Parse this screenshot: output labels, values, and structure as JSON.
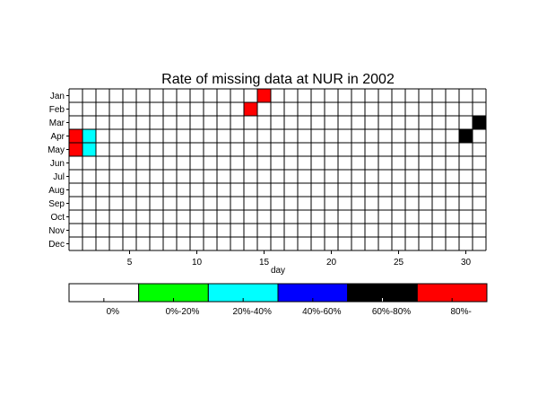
{
  "chart_data": {
    "type": "heatmap",
    "title": "Rate of missing data at NUR in 2002",
    "xlabel": "day",
    "ylabel": "",
    "x_range": [
      1,
      31
    ],
    "x_ticks": [
      5,
      10,
      15,
      20,
      25,
      30
    ],
    "rows": [
      "Jan",
      "Feb",
      "Mar",
      "Apr",
      "May",
      "Jun",
      "Jul",
      "Aug",
      "Sep",
      "Oct",
      "Nov",
      "Dec"
    ],
    "grid": true,
    "colorbar": {
      "placement": "bottom",
      "bins": [
        {
          "label": "0%",
          "color": "#ffffff"
        },
        {
          "label": "0%-20%",
          "color": "#00ff00"
        },
        {
          "label": "20%-40%",
          "color": "#00ffff"
        },
        {
          "label": "40%-60%",
          "color": "#0000ff"
        },
        {
          "label": "60%-80%",
          "color": "#000000"
        },
        {
          "label": "80%-",
          "color": "#ff0000"
        }
      ]
    },
    "cells": [
      {
        "month": "Jan",
        "day": 15,
        "bin": "80%-"
      },
      {
        "month": "Feb",
        "day": 14,
        "bin": "80%-"
      },
      {
        "month": "Mar",
        "day": 31,
        "bin": "60%-80%"
      },
      {
        "month": "Apr",
        "day": 1,
        "bin": "80%-"
      },
      {
        "month": "Apr",
        "day": 2,
        "bin": "20%-40%"
      },
      {
        "month": "Apr",
        "day": 30,
        "bin": "60%-80%"
      },
      {
        "month": "May",
        "day": 1,
        "bin": "80%-"
      },
      {
        "month": "May",
        "day": 2,
        "bin": "20%-40%"
      }
    ]
  }
}
